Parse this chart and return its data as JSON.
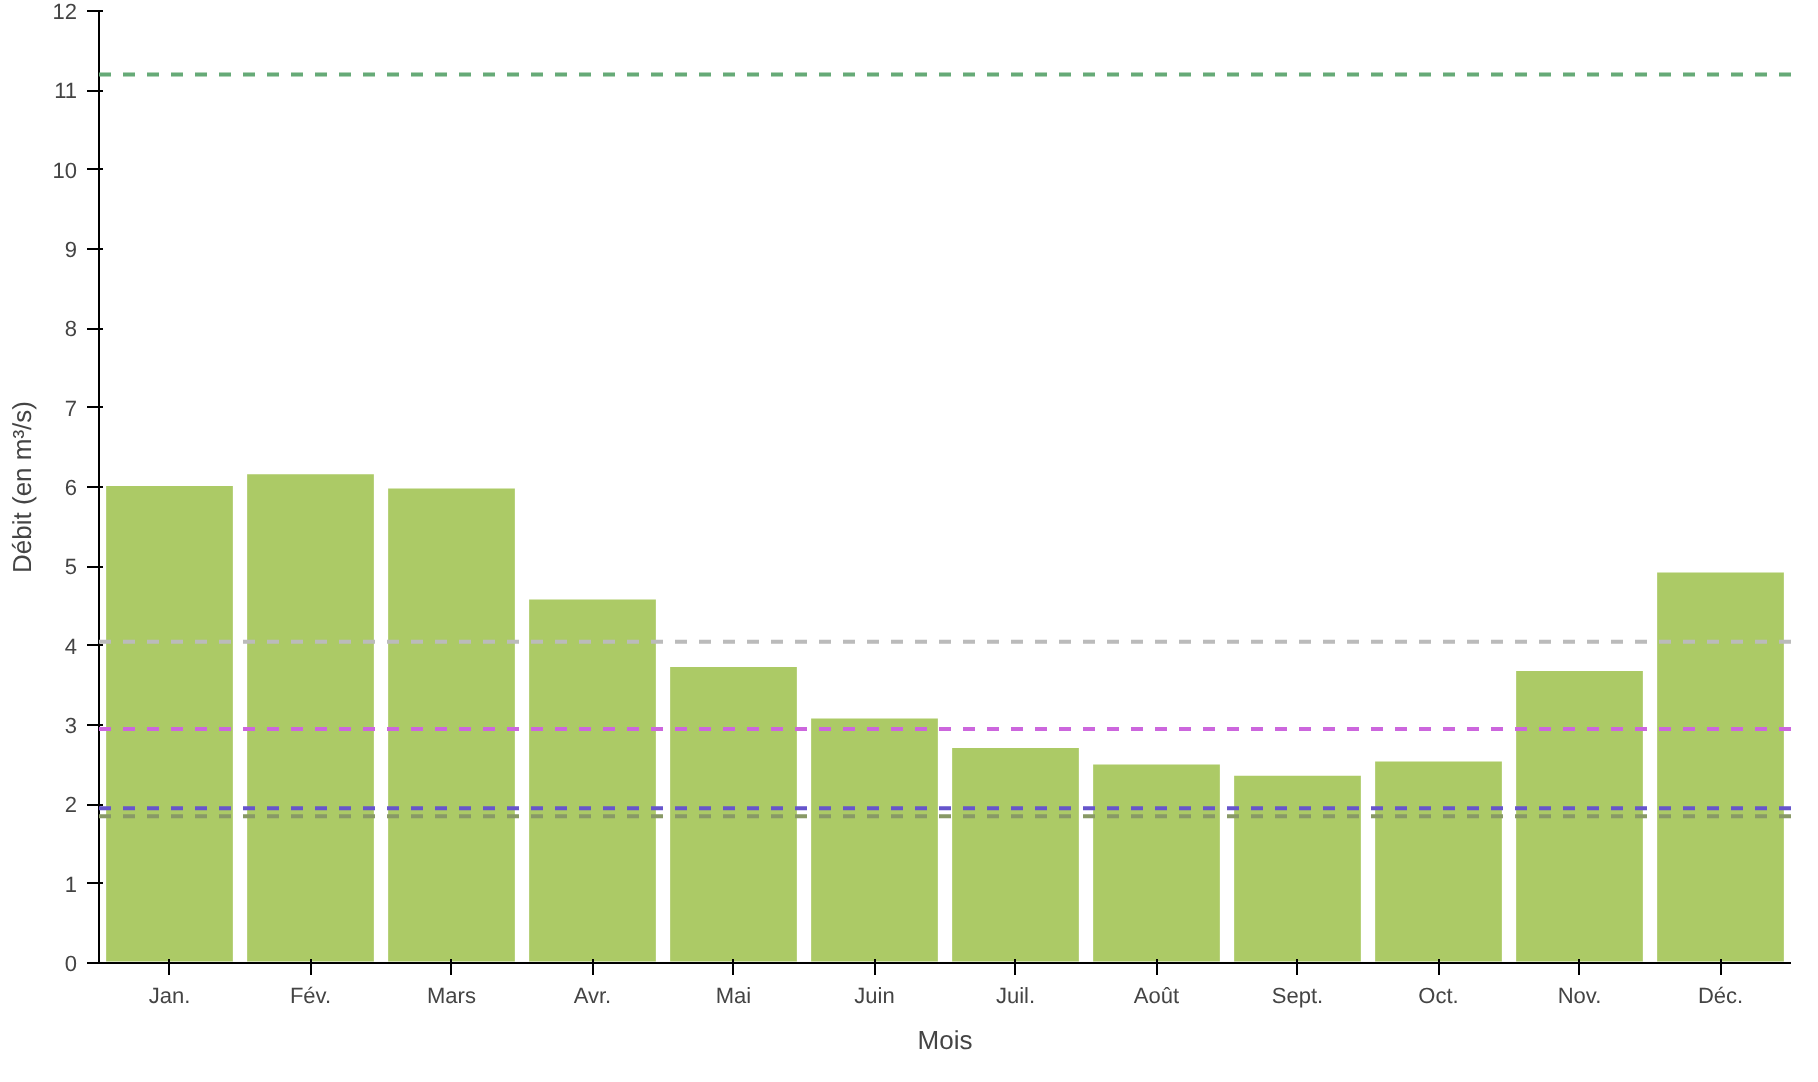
{
  "chart_data": {
    "type": "bar",
    "xlabel": "Mois",
    "ylabel": "Débit (en m³/s)",
    "categories": [
      "Jan.",
      "Fév.",
      "Mars",
      "Avr.",
      "Mai",
      "Juin",
      "Juil.",
      "Août",
      "Sept.",
      "Oct.",
      "Nov.",
      "Déc."
    ],
    "values": [
      6.03,
      6.18,
      6.0,
      4.6,
      3.75,
      3.1,
      2.73,
      2.52,
      2.38,
      2.56,
      3.7,
      4.94
    ],
    "color": "#acca66",
    "ylim": [
      0,
      12
    ],
    "yticks": [
      0,
      1,
      2,
      3,
      4,
      5,
      6,
      7,
      8,
      9,
      10,
      11,
      12
    ],
    "grid": false,
    "ref_lines": [
      {
        "axis": "y",
        "value": 11.2,
        "color": "#66aa77",
        "line_style": "dashed"
      },
      {
        "axis": "y",
        "value": 4.05,
        "color": "#bbbbbb",
        "line_style": "dashed"
      },
      {
        "axis": "y",
        "value": 2.95,
        "color": "#cc66dd",
        "line_style": "dashed"
      },
      {
        "axis": "y",
        "value": 1.95,
        "color": "#6655cc",
        "line_style": "dashed"
      },
      {
        "axis": "y",
        "value": 1.85,
        "color": "#889966",
        "line_style": "dashed"
      }
    ]
  }
}
